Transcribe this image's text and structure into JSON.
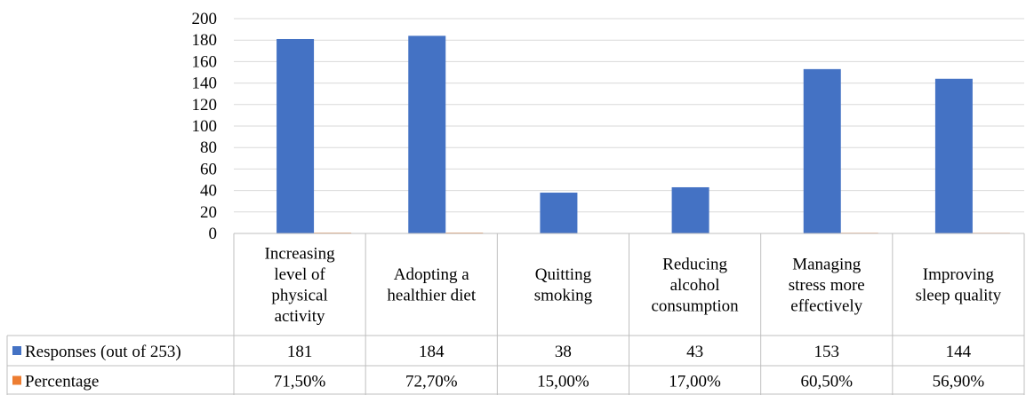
{
  "chart_data": {
    "type": "bar",
    "categories": [
      [
        "Increasing",
        "level of",
        "physical",
        "activity"
      ],
      [
        "Adopting a",
        "healthier diet"
      ],
      [
        "Quitting",
        "smoking"
      ],
      [
        "Reducing",
        "alcohol",
        "consumption"
      ],
      [
        "Managing",
        "stress more",
        "effectively"
      ],
      [
        "Improving",
        "sleep quality"
      ]
    ],
    "ylim": [
      0,
      200
    ],
    "yticks": [
      0,
      20,
      40,
      60,
      80,
      100,
      120,
      140,
      160,
      180,
      200
    ],
    "grid": true,
    "series": [
      {
        "name": "Responses (out of 253)",
        "color": "#4472C4",
        "values": [
          181,
          184,
          38,
          43,
          153,
          144
        ],
        "labels": [
          "181",
          "184",
          "38",
          "43",
          "153",
          "144"
        ]
      },
      {
        "name": "Percentage",
        "color": "#ED7D31",
        "values": [
          71.5,
          72.7,
          15.0,
          17.0,
          60.5,
          56.9
        ],
        "labels": [
          "71,50%",
          "72,70%",
          "15,00%",
          "17,00%",
          "60,50%",
          "56,90%"
        ]
      }
    ],
    "data_table": true
  },
  "colors": {
    "gridline": "#D9D9D9",
    "table_border": "#BFBFBF"
  }
}
